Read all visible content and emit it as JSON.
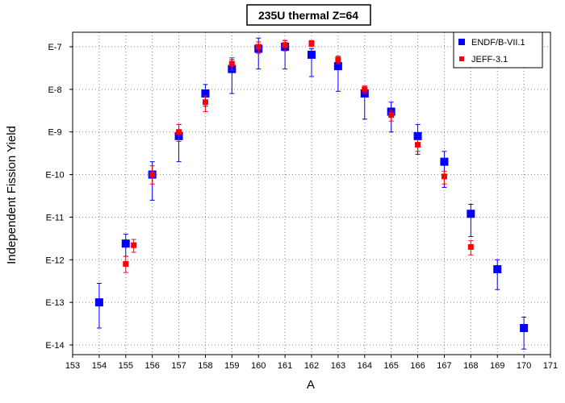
{
  "chart_data": {
    "type": "scatter",
    "title": "235U thermal Z=64",
    "xlabel": "A",
    "ylabel": "Independent Fission Yield",
    "xlim": [
      153,
      171
    ],
    "ylim": [
      1e-14,
      1e-07
    ],
    "y_scale": "log",
    "x_ticks": [
      "153",
      "154",
      "155",
      "156",
      "157",
      "158",
      "159",
      "160",
      "161",
      "162",
      "163",
      "164",
      "165",
      "166",
      "167",
      "168",
      "169",
      "170",
      "171"
    ],
    "y_ticks": [
      {
        "label": "E-7",
        "value": 1e-07
      },
      {
        "label": "E-8",
        "value": 1e-08
      },
      {
        "label": "E-9",
        "value": 1e-09
      },
      {
        "label": "E-10",
        "value": 1e-10
      },
      {
        "label": "E-11",
        "value": 1e-11
      },
      {
        "label": "E-12",
        "value": 1e-12
      },
      {
        "label": "E-13",
        "value": 1e-13
      },
      {
        "label": "E-14",
        "value": 1e-14
      }
    ],
    "grid": true,
    "legend_position": "top-right",
    "series": [
      {
        "name": "ENDF/B-VII.1",
        "color": "#0000ff",
        "marker": "square",
        "points": [
          {
            "x": 154,
            "y": 1e-13,
            "ylo": 2.5e-14,
            "yhi": 2.8e-13
          },
          {
            "x": 155,
            "y": 2.4e-12,
            "ylo": 1.2e-12,
            "yhi": 4e-12
          },
          {
            "x": 156,
            "y": 1e-10,
            "ylo": 2.5e-11,
            "yhi": 2e-10
          },
          {
            "x": 157,
            "y": 8e-10,
            "ylo": 2e-10,
            "yhi": 1.5e-09
          },
          {
            "x": 158,
            "y": 8e-09,
            "ylo": 4e-09,
            "yhi": 1.3e-08
          },
          {
            "x": 159,
            "y": 3e-08,
            "ylo": 8e-09,
            "yhi": 5e-08
          },
          {
            "x": 160,
            "y": 9e-08,
            "ylo": 3e-08,
            "yhi": 1.6e-07
          },
          {
            "x": 161,
            "y": 1e-07,
            "ylo": 3e-08,
            "yhi": 1.4e-07
          },
          {
            "x": 162,
            "y": 6.5e-08,
            "ylo": 2e-08,
            "yhi": 9e-08
          },
          {
            "x": 163,
            "y": 3.5e-08,
            "ylo": 9e-09,
            "yhi": 5e-08
          },
          {
            "x": 164,
            "y": 8e-09,
            "ylo": 2e-09,
            "yhi": 1e-08
          },
          {
            "x": 165,
            "y": 3e-09,
            "ylo": 1e-09,
            "yhi": 5e-09
          },
          {
            "x": 166,
            "y": 8e-10,
            "ylo": 3e-10,
            "yhi": 1.5e-09
          },
          {
            "x": 167,
            "y": 2e-10,
            "ylo": 5e-11,
            "yhi": 3.5e-10
          },
          {
            "x": 168,
            "y": 1.2e-11,
            "ylo": 3.5e-12,
            "yhi": 2e-11
          },
          {
            "x": 169,
            "y": 6e-13,
            "ylo": 2e-13,
            "yhi": 1e-12
          },
          {
            "x": 170,
            "y": 2.5e-14,
            "ylo": 8e-15,
            "yhi": 4.5e-14
          }
        ]
      },
      {
        "name": "JEFF-3.1",
        "color": "#ff0000",
        "marker": "square",
        "points": [
          {
            "x": 155,
            "y": 8e-13,
            "ylo": 5e-13,
            "yhi": 1.2e-12
          },
          {
            "x": 155.3,
            "y": 2.2e-12,
            "ylo": 1.5e-12,
            "yhi": 3e-12
          },
          {
            "x": 156,
            "y": 1e-10,
            "ylo": 6e-11,
            "yhi": 1.6e-10
          },
          {
            "x": 157,
            "y": 1e-09,
            "ylo": 6e-10,
            "yhi": 1.5e-09
          },
          {
            "x": 158,
            "y": 5e-09,
            "ylo": 3e-09,
            "yhi": 7e-09
          },
          {
            "x": 159,
            "y": 4e-08,
            "ylo": 2.8e-08,
            "yhi": 5.5e-08
          },
          {
            "x": 160,
            "y": 1e-07,
            "ylo": 7e-08,
            "yhi": 1.3e-07
          },
          {
            "x": 161,
            "y": 1.1e-07,
            "ylo": 8e-08,
            "yhi": 1.4e-07
          },
          {
            "x": 162,
            "y": 1.2e-07,
            "ylo": 1e-07,
            "yhi": 1.4e-07
          },
          {
            "x": 163,
            "y": 5e-08,
            "ylo": 4e-08,
            "yhi": 6e-08
          },
          {
            "x": 164,
            "y": 1e-08,
            "ylo": 8e-09,
            "yhi": 1.2e-08
          },
          {
            "x": 165,
            "y": 2.5e-09,
            "ylo": 1.8e-09,
            "yhi": 3.2e-09
          },
          {
            "x": 166,
            "y": 5e-10,
            "ylo": 3.5e-10,
            "yhi": 6.5e-10
          },
          {
            "x": 167,
            "y": 9e-11,
            "ylo": 6e-11,
            "yhi": 1.2e-10
          },
          {
            "x": 168,
            "y": 2e-12,
            "ylo": 1.3e-12,
            "yhi": 2.8e-12
          }
        ]
      }
    ]
  }
}
